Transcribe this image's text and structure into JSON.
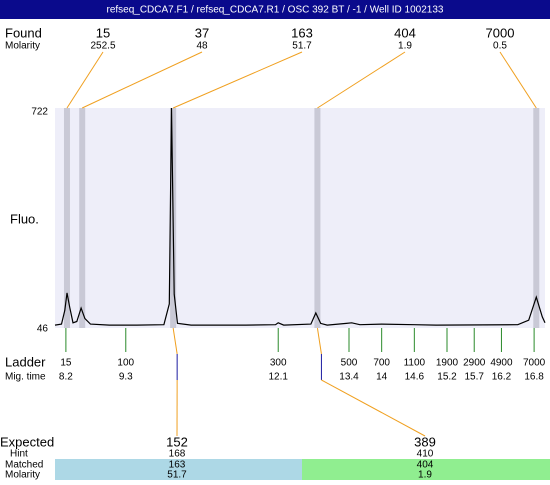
{
  "header": {
    "title": "refseq_CDCA7.F1 / refseq_CDCA7.R1 / OSC 392 BT / -1 / Well ID 1002133"
  },
  "found": {
    "label": "Found",
    "molarity_label": "Molarity",
    "sizes": [
      15,
      37,
      163,
      404,
      7000
    ],
    "molarity": [
      252.5,
      48,
      51.7,
      1.9,
      0.5
    ],
    "mig_time": [
      8.22,
      8.5,
      10.17,
      12.82,
      16.84
    ]
  },
  "plot": {
    "ylabel": "Fluo.",
    "xlim": [
      8.0,
      17.0
    ],
    "ylim": [
      46,
      722
    ],
    "yticks": [
      722,
      46
    ],
    "trace": {
      "x": [
        8.0,
        8.12,
        8.18,
        8.22,
        8.27,
        8.33,
        8.4,
        8.48,
        8.55,
        8.65,
        9.0,
        9.5,
        10.0,
        10.1,
        10.14,
        10.19,
        10.25,
        10.5,
        11.5,
        12.05,
        12.1,
        12.2,
        12.7,
        12.79,
        12.88,
        13.0,
        13.35,
        13.45,
        13.6,
        14.0,
        14.6,
        15.0,
        16.5,
        16.7,
        16.84,
        16.95,
        17.0
      ],
      "values": [
        55,
        58,
        100,
        154,
        110,
        62,
        66,
        107,
        75,
        58,
        55,
        55,
        56,
        120,
        722,
        150,
        60,
        55,
        55,
        56,
        62,
        55,
        58,
        92,
        60,
        55,
        60,
        62,
        56,
        58,
        56,
        55,
        56,
        70,
        141,
        80,
        62
      ]
    }
  },
  "ladder": {
    "label": "Ladder",
    "time_label": "Mig. time",
    "sizes": [
      15,
      100,
      300,
      500,
      700,
      1100,
      1900,
      2900,
      4900,
      7000
    ],
    "mig_time": [
      8.2,
      9.3,
      12.1,
      13.4,
      14,
      14.6,
      15.2,
      15.7,
      16.2,
      16.8
    ]
  },
  "expected": {
    "labels": [
      "Expected",
      "Hint",
      "Matched",
      "Molarity"
    ],
    "items": [
      {
        "expected": 152,
        "hint": 168,
        "matched": 163,
        "molarity": 51.7
      },
      {
        "expected": 389,
        "hint": 410,
        "matched": 404,
        "molarity": 1.9
      }
    ]
  }
}
